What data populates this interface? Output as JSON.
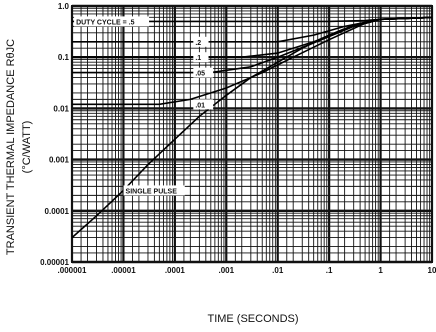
{
  "chart_data": {
    "type": "line",
    "xlabel": "TIME (SECONDS)",
    "ylabel": "TRANSIENT THERMAL IMPEDANCE RθJC",
    "yunit": "(°C/WATT)",
    "x_scale": "log",
    "y_scale": "log",
    "xlim": [
      1e-06,
      10
    ],
    "ylim": [
      1e-05,
      1
    ],
    "grid": true,
    "x_ticks": [
      {
        "value": 1e-06,
        "label": ".000001"
      },
      {
        "value": 1e-05,
        "label": ".00001"
      },
      {
        "value": 0.0001,
        "label": ".0001"
      },
      {
        "value": 0.001,
        "label": ".001"
      },
      {
        "value": 0.01,
        "label": ".01"
      },
      {
        "value": 0.1,
        "label": ".1"
      },
      {
        "value": 1,
        "label": "1"
      },
      {
        "value": 10,
        "label": "10"
      }
    ],
    "y_ticks": [
      {
        "value": 1,
        "label": "1.0"
      },
      {
        "value": 0.1,
        "label": "0.1"
      },
      {
        "value": 0.01,
        "label": "0.01"
      },
      {
        "value": 0.001,
        "label": "0.001"
      },
      {
        "value": 0.0001,
        "label": "0.0001"
      },
      {
        "value": 1e-05,
        "label": "0.00001"
      }
    ],
    "series": [
      {
        "name": "DUTY CYCLE = .5",
        "x": [
          1e-06,
          0.1,
          0.5,
          1,
          10
        ],
        "y": [
          0.5,
          0.5,
          0.52,
          0.55,
          0.6
        ]
      },
      {
        "name": ".2",
        "x": [
          1e-06,
          0.01,
          0.05,
          0.2,
          1,
          10
        ],
        "y": [
          0.2,
          0.2,
          0.27,
          0.4,
          0.55,
          0.6
        ]
      },
      {
        "name": ".1",
        "x": [
          1e-06,
          0.002,
          0.01,
          0.05,
          0.2,
          1,
          10
        ],
        "y": [
          0.1,
          0.1,
          0.12,
          0.2,
          0.36,
          0.55,
          0.6
        ]
      },
      {
        "name": ".05",
        "x": [
          1e-06,
          0.0005,
          0.003,
          0.01,
          0.05,
          0.3,
          1,
          10
        ],
        "y": [
          0.05,
          0.05,
          0.065,
          0.1,
          0.19,
          0.4,
          0.55,
          0.6
        ]
      },
      {
        "name": ".01",
        "x": [
          1e-06,
          5e-05,
          0.0002,
          0.001,
          0.005,
          0.02,
          0.1,
          0.5,
          1,
          10
        ],
        "y": [
          0.012,
          0.012,
          0.015,
          0.025,
          0.05,
          0.1,
          0.22,
          0.46,
          0.55,
          0.6
        ]
      },
      {
        "name": "SINGLE PULSE",
        "x": [
          1e-06,
          3e-06,
          1e-05,
          3e-05,
          0.0001,
          0.0003,
          0.001,
          0.003,
          0.01,
          0.03,
          0.1,
          0.3,
          1,
          10
        ],
        "y": [
          3e-05,
          8e-05,
          0.00025,
          0.0008,
          0.0025,
          0.007,
          0.018,
          0.04,
          0.08,
          0.15,
          0.27,
          0.42,
          0.55,
          0.6
        ]
      }
    ]
  }
}
